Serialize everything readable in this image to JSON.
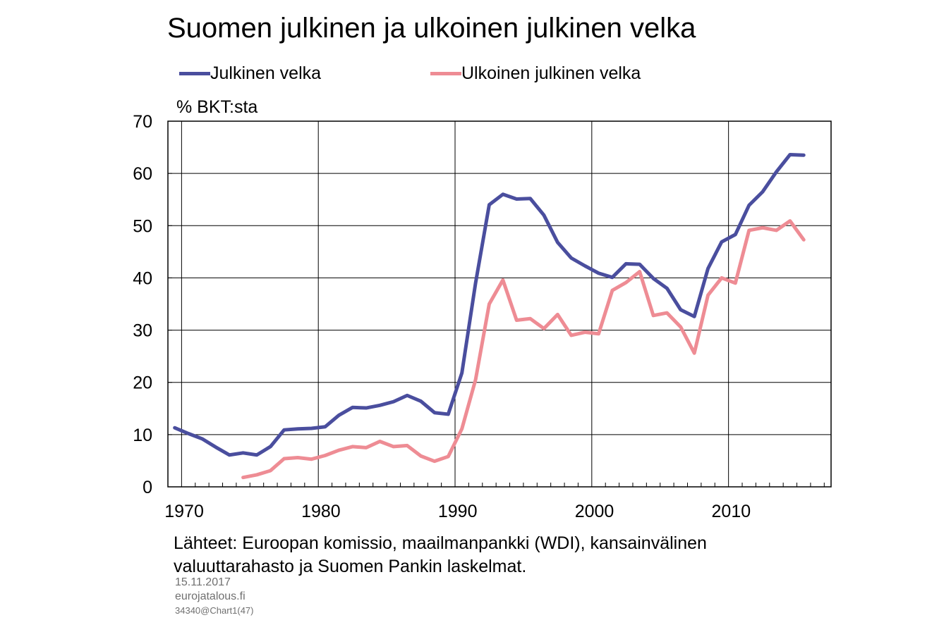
{
  "chart_data": {
    "type": "line",
    "title": "Suomen julkinen ja ulkoinen julkinen velka",
    "ylabel": "% BKT:sta",
    "xlabel": "",
    "xlim": [
      1968.5,
      2017
    ],
    "ylim": [
      0,
      70
    ],
    "yticks": [
      0,
      10,
      20,
      30,
      40,
      50,
      60,
      70
    ],
    "xticks": [
      1970,
      1980,
      1990,
      2000,
      2010
    ],
    "grid": true,
    "legend_position": "top",
    "series": [
      {
        "name": "Julkinen velka",
        "color": "#4a4e9e",
        "x": [
          1969,
          1970,
          1971,
          1972,
          1973,
          1974,
          1975,
          1976,
          1977,
          1978,
          1979,
          1980,
          1981,
          1982,
          1983,
          1984,
          1985,
          1986,
          1987,
          1988,
          1989,
          1990,
          1991,
          1992,
          1993,
          1994,
          1995,
          1996,
          1997,
          1998,
          1999,
          2000,
          2001,
          2002,
          2003,
          2004,
          2005,
          2006,
          2007,
          2008,
          2009,
          2010,
          2011,
          2012,
          2013,
          2014,
          2015
        ],
        "values": [
          11.3,
          10.2,
          9.2,
          7.6,
          6.1,
          6.5,
          6.1,
          7.7,
          10.9,
          11.1,
          11.2,
          11.5,
          13.7,
          15.2,
          15.1,
          15.6,
          16.3,
          17.5,
          16.4,
          14.2,
          13.9,
          21.8,
          39.0,
          54.0,
          56.0,
          55.1,
          55.2,
          52.0,
          46.8,
          43.8,
          42.3,
          40.9,
          40.1,
          42.7,
          42.6,
          39.9,
          38.0,
          33.9,
          32.6,
          41.8,
          46.9,
          48.3,
          53.9,
          56.5,
          60.3,
          63.6,
          63.5
        ]
      },
      {
        "name": "Ulkoinen julkinen velka",
        "color": "#ee8c94",
        "x": [
          1974,
          1975,
          1976,
          1977,
          1978,
          1979,
          1980,
          1981,
          1982,
          1983,
          1984,
          1985,
          1986,
          1987,
          1988,
          1989,
          1990,
          1991,
          1992,
          1993,
          1994,
          1995,
          1996,
          1997,
          1998,
          1999,
          2000,
          2001,
          2002,
          2003,
          2004,
          2005,
          2006,
          2007,
          2008,
          2009,
          2010,
          2011,
          2012,
          2013,
          2014,
          2015
        ],
        "values": [
          1.8,
          2.3,
          3.1,
          5.4,
          5.6,
          5.3,
          6.0,
          7.0,
          7.7,
          7.5,
          8.7,
          7.7,
          7.9,
          5.9,
          4.9,
          5.8,
          11.1,
          20.5,
          35.0,
          39.6,
          31.9,
          32.2,
          30.3,
          33.0,
          29.0,
          29.6,
          29.3,
          37.6,
          39.1,
          41.2,
          32.8,
          33.3,
          30.6,
          25.6,
          36.7,
          40.0,
          39.0,
          49.1,
          49.6,
          49.1,
          50.9,
          47.3
        ]
      }
    ]
  },
  "source_text": {
    "line1": "Lähteet: Euroopan komissio, maailmanpankki (WDI), kansainvälinen",
    "line2": "valuuttarahasto  ja Suomen Pankin laskelmat."
  },
  "meta": {
    "date": "15.11.2017",
    "site": "eurojatalous.fi",
    "chart_id": "34340@Chart1(47)"
  }
}
